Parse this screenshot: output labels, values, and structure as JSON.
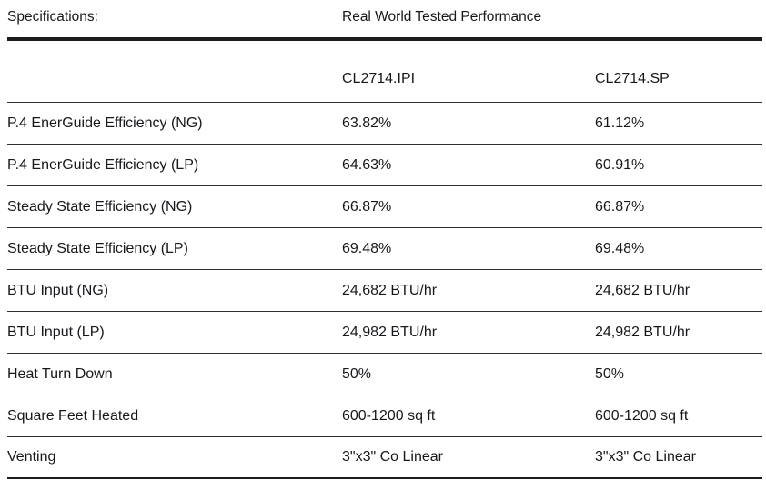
{
  "header": {
    "left_label": "Specifications:",
    "section_title": "Real World Tested Performance"
  },
  "table": {
    "columns": [
      "CL2714.IPI",
      "CL2714.SP"
    ],
    "rows": [
      {
        "label": "P.4 EnerGuide Efficiency (NG)",
        "values": [
          "63.82%",
          "61.12%"
        ]
      },
      {
        "label": "P.4 EnerGuide Efficiency (LP)",
        "values": [
          "64.63%",
          "60.91%"
        ]
      },
      {
        "label": "Steady State Efficiency (NG)",
        "values": [
          "66.87%",
          "66.87%"
        ]
      },
      {
        "label": "Steady State Efficiency (LP)",
        "values": [
          "69.48%",
          "69.48%"
        ]
      },
      {
        "label": "BTU Input (NG)",
        "values": [
          "24,682 BTU/hr",
          "24,682 BTU/hr"
        ]
      },
      {
        "label": "BTU Input (LP)",
        "values": [
          "24,982 BTU/hr",
          "24,982 BTU/hr"
        ]
      },
      {
        "label": "Heat Turn Down",
        "values": [
          "50%",
          "50%"
        ]
      },
      {
        "label": "Square Feet Heated",
        "values": [
          "600-1200 sq ft",
          "600-1200 sq ft"
        ]
      },
      {
        "label": "Venting",
        "values": [
          "3\"x3\" Co Linear",
          "3\"x3\" Co Linear"
        ]
      }
    ]
  }
}
